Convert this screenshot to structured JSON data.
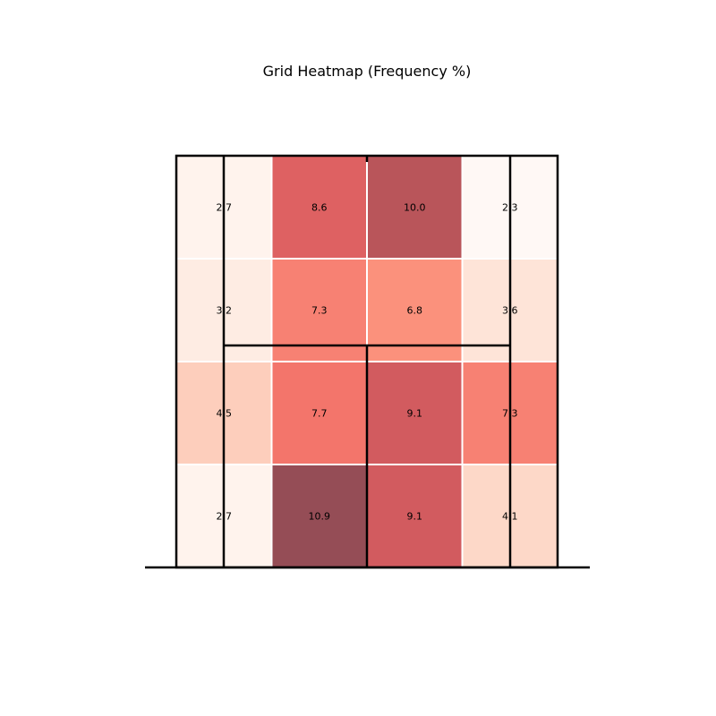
{
  "chart_data": {
    "type": "heatmap",
    "title": "Grid Heatmap (Frequency %)",
    "rows": 4,
    "cols": 4,
    "values": [
      [
        2.7,
        8.6,
        10.0,
        2.3
      ],
      [
        3.2,
        7.3,
        6.8,
        3.6
      ],
      [
        4.5,
        7.7,
        9.1,
        7.3
      ],
      [
        2.7,
        10.9,
        9.1,
        4.1
      ]
    ],
    "value_range": [
      2.3,
      10.9
    ],
    "colormap": "Reds",
    "cell_border_color": "#ffffff",
    "cell_alpha": 0.7,
    "legend": "none",
    "grid": false
  }
}
